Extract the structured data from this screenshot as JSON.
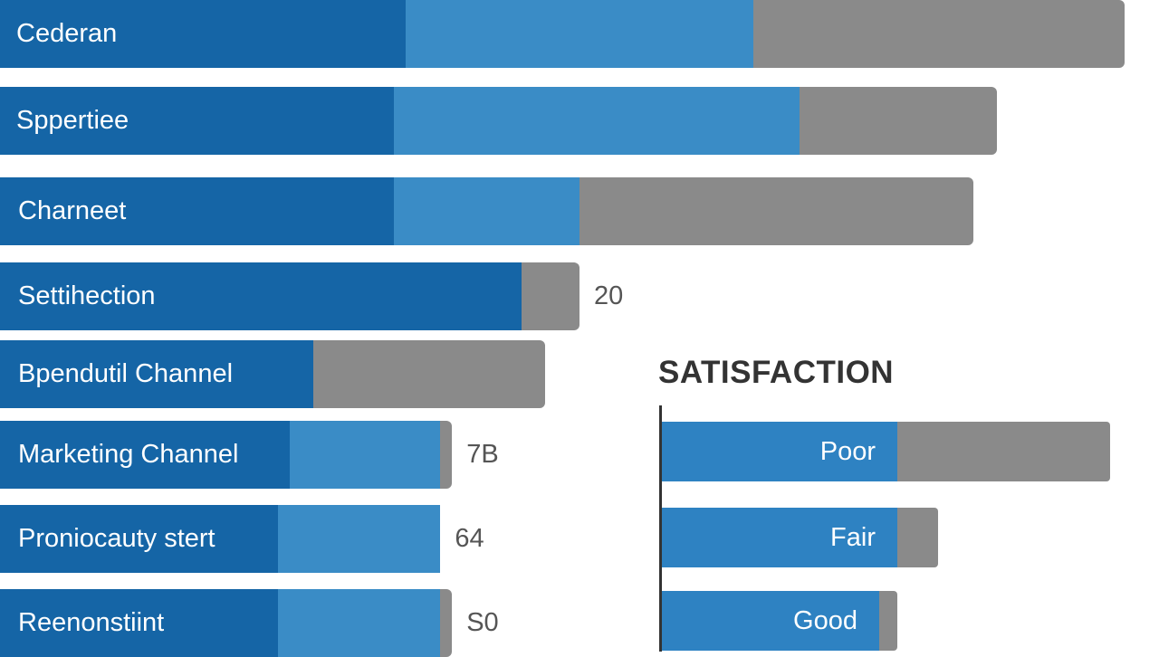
{
  "chart_data": [
    {
      "type": "bar",
      "orientation": "horizontal",
      "stacked": true,
      "categories": [
        "Cederan",
        "Sppertiee",
        "Charneet",
        "Settihection",
        "Bpendutil Channel",
        "Marketing Channel",
        "Proniocauty stert",
        "Reenonstiint"
      ],
      "series": [
        {
          "values": [
            35,
            34,
            34,
            45,
            27,
            25,
            24,
            24
          ]
        },
        {
          "values": [
            30,
            35,
            16,
            0,
            0,
            13,
            14,
            14
          ]
        },
        {
          "values": [
            32,
            17,
            34,
            5,
            20,
            1,
            0,
            1
          ]
        }
      ],
      "value_labels": [
        "",
        "",
        "",
        "20",
        "",
        "7B",
        "64",
        "S0"
      ],
      "xlim": [
        0,
        100
      ],
      "colors": [
        "#1565a6",
        "#3a8cc6",
        "#8a8a8a"
      ]
    },
    {
      "type": "bar",
      "orientation": "horizontal",
      "stacked": true,
      "title": "SATISFACTION",
      "categories": [
        "Poor",
        "Fair",
        "Good"
      ],
      "series": [
        {
          "values": [
            52,
            52,
            48
          ]
        },
        {
          "values": [
            47,
            9,
            4
          ]
        }
      ],
      "xlim": [
        0,
        100
      ],
      "colors": [
        "#2e82c2",
        "#8a8a8a"
      ]
    }
  ]
}
